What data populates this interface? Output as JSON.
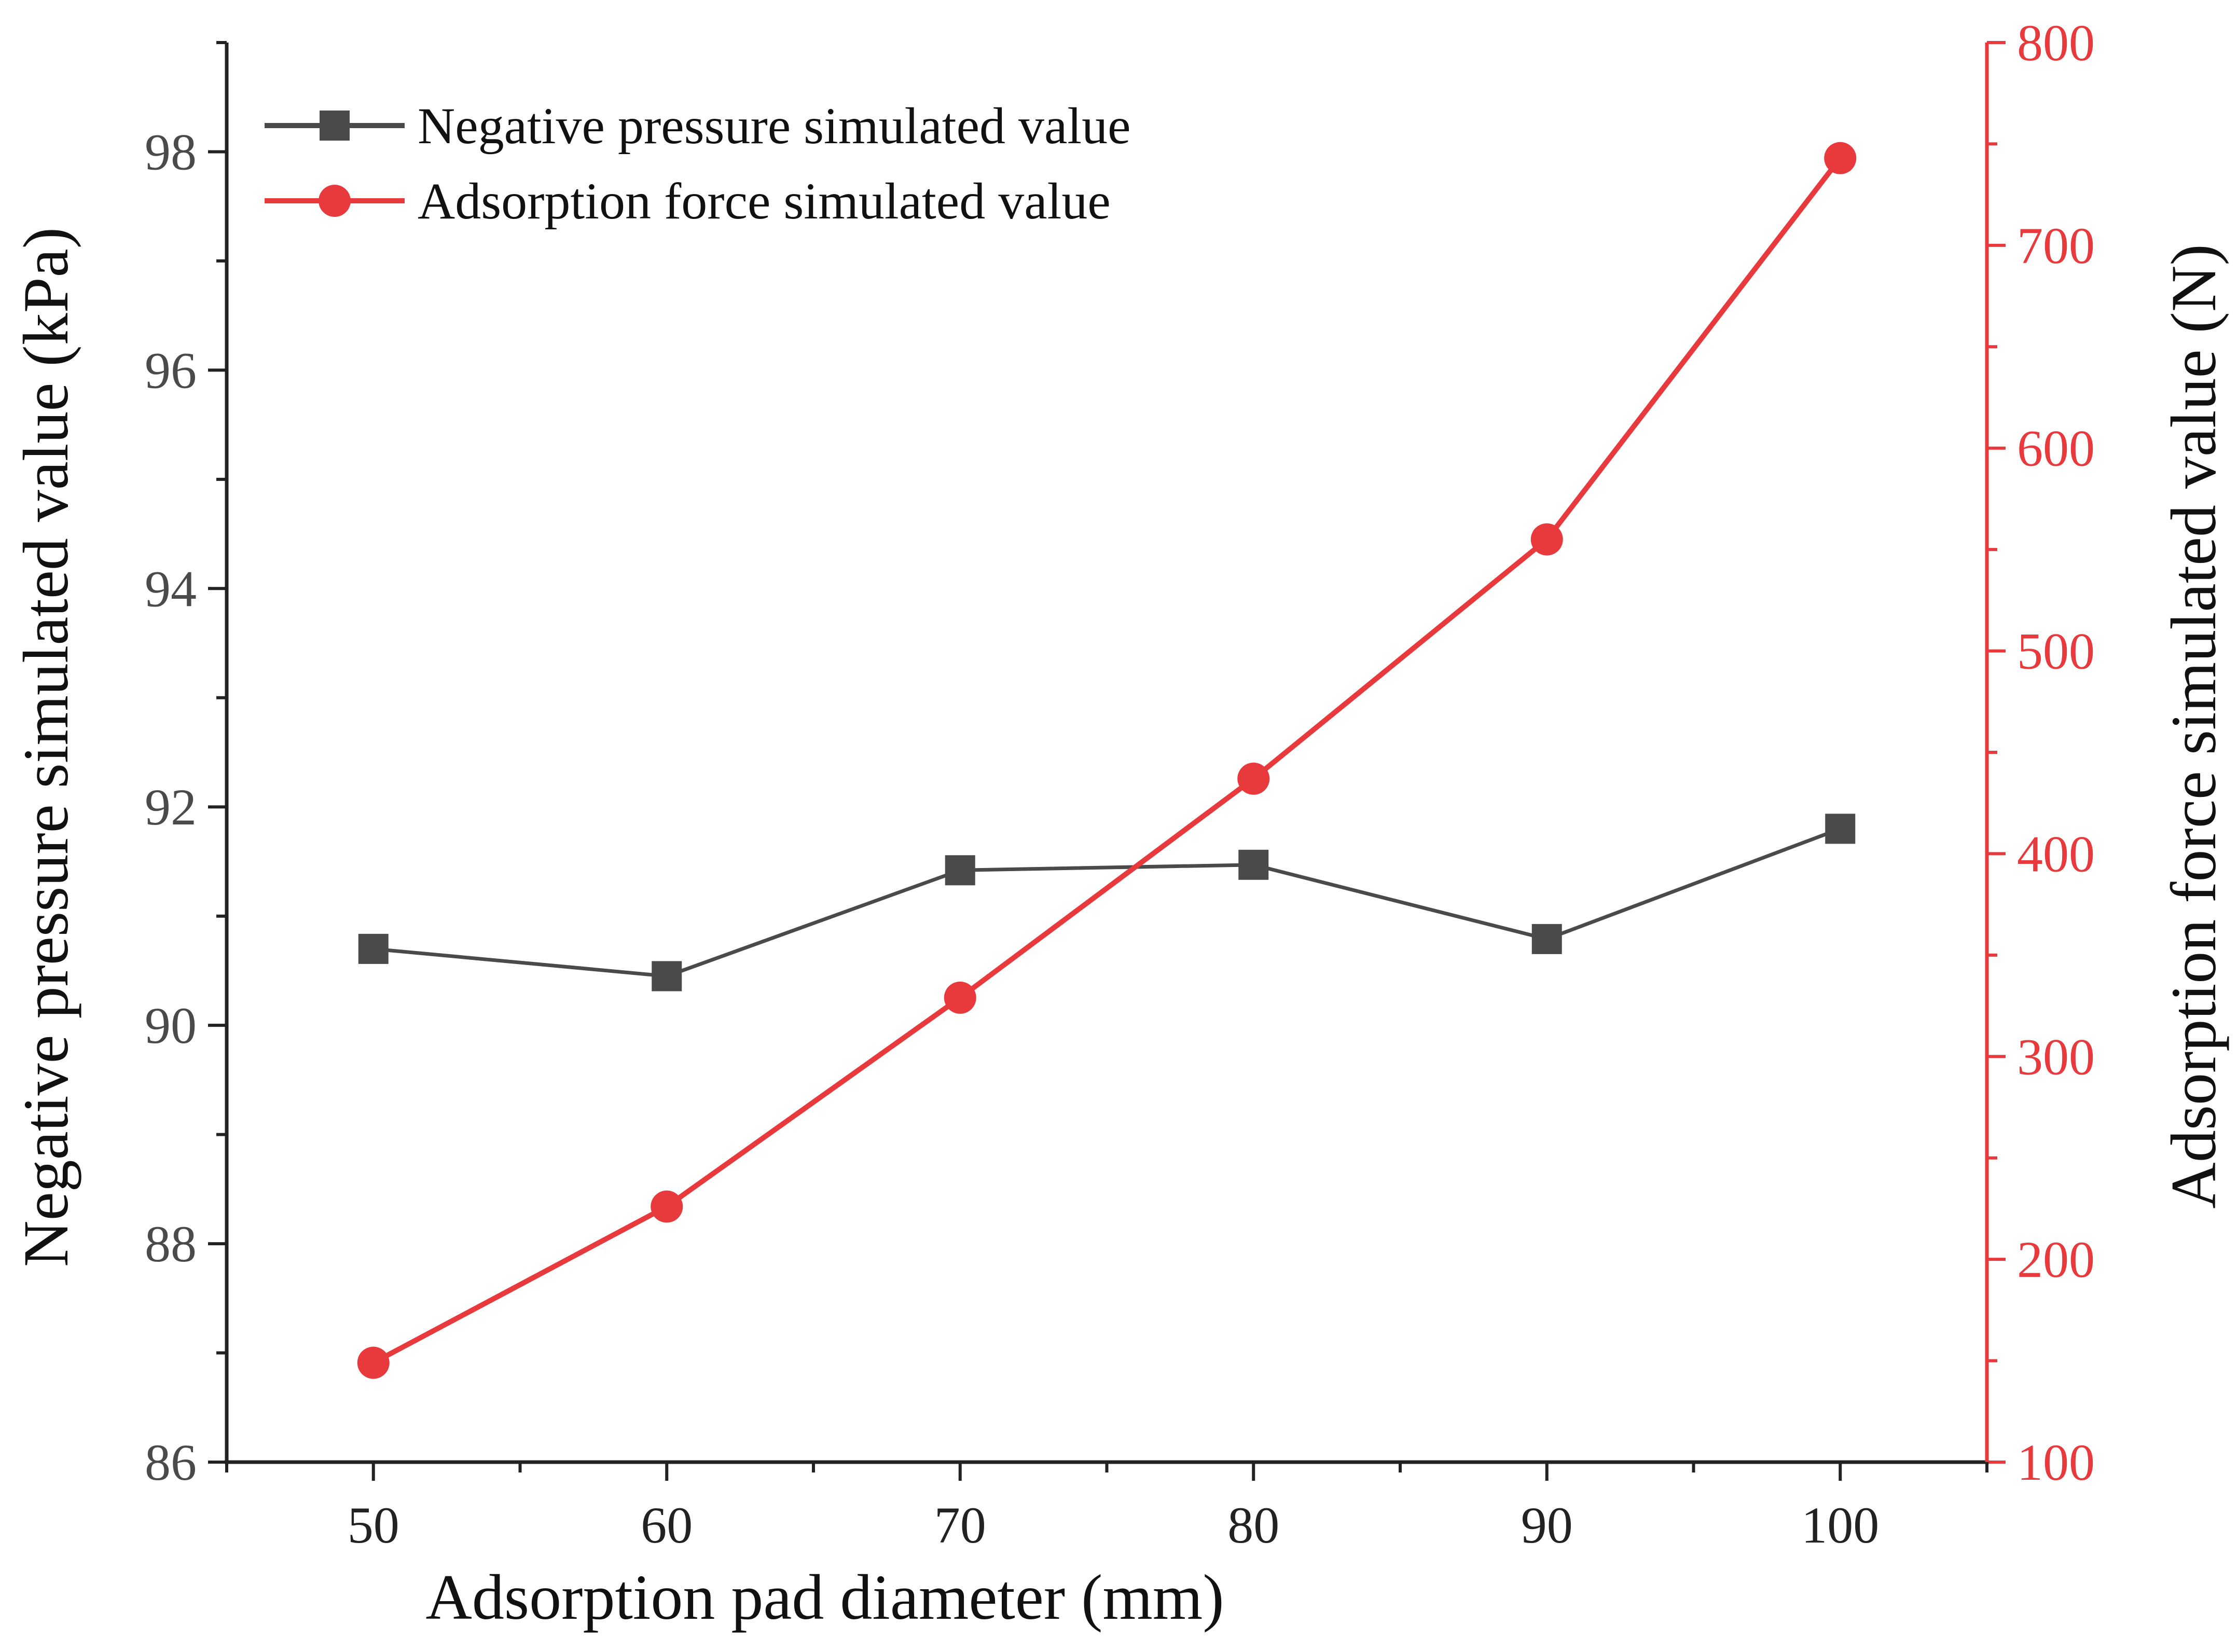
{
  "chart_data": {
    "type": "line",
    "title": "",
    "xlabel": "Adsorption pad diameter (mm)",
    "ylabel_left": "Negative pressure simulated value (kPa)",
    "ylabel_right": "Adsorption force simulated value (N)",
    "x": [
      50,
      60,
      70,
      80,
      90,
      100
    ],
    "xlim": [
      45,
      105
    ],
    "x_ticks": [
      50,
      60,
      70,
      80,
      90,
      100
    ],
    "ylim_left": [
      86,
      99
    ],
    "y_ticks_left": [
      86,
      88,
      90,
      92,
      94,
      96,
      98
    ],
    "ylim_right": [
      100,
      800
    ],
    "y_ticks_right": [
      100,
      200,
      300,
      400,
      500,
      600,
      700,
      800
    ],
    "legend_position": "top-left",
    "grid": false,
    "series": [
      {
        "name": "Negative pressure simulated value",
        "axis": "left",
        "marker": "square",
        "color": "#4a4a4a",
        "values": [
          90.7,
          90.45,
          91.42,
          91.47,
          90.79,
          91.8
        ]
      },
      {
        "name": "Adsorption force simulated value",
        "axis": "right",
        "marker": "circle",
        "color": "#e8393c",
        "values": [
          149,
          226,
          329,
          437,
          555,
          743
        ]
      }
    ],
    "colors": {
      "left_axis": "#4a4a4a",
      "right_axis": "#e8393c",
      "frame": "#222222"
    }
  }
}
